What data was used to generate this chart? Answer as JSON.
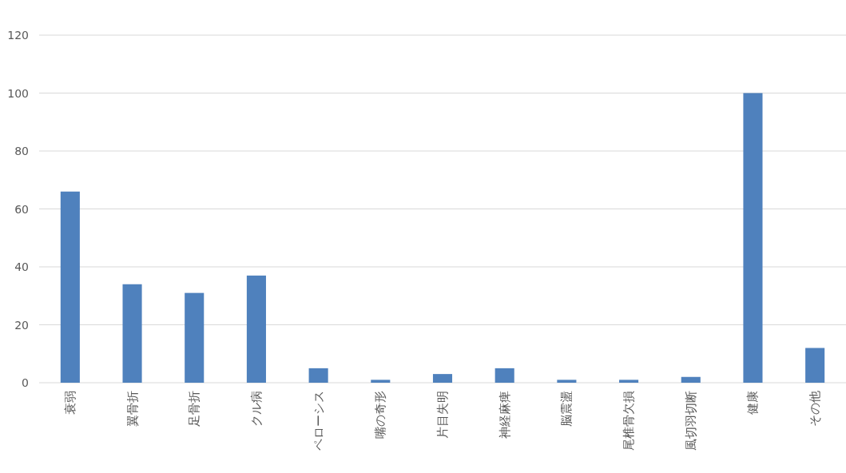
{
  "chart_data": {
    "type": "bar",
    "categories": [
      "衰弱",
      "翼骨折",
      "足骨折",
      "クル病",
      "ペローシス",
      "嘴の奇形",
      "片目失明",
      "神経麻痺",
      "脳震盪",
      "尾椎骨欠損",
      "風切羽切断",
      "健康",
      "その他"
    ],
    "values": [
      66,
      34,
      31,
      37,
      5,
      1,
      3,
      5,
      1,
      1,
      2,
      100,
      12
    ],
    "color": "#4f81bd",
    "ylim": [
      0,
      120
    ],
    "yticks": [
      0,
      20,
      40,
      60,
      80,
      100,
      120
    ],
    "grid": "y"
  }
}
